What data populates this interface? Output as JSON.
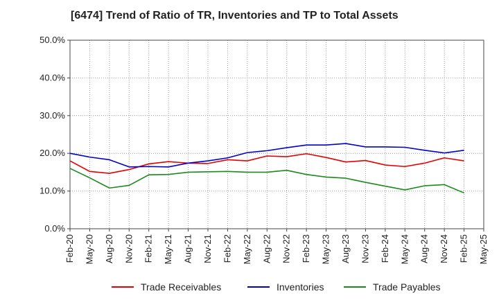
{
  "chart_data": {
    "type": "line",
    "title": "[6474]  Trend of Ratio of TR, Inventories and TP to Total Assets",
    "x": [
      "Feb-20",
      "May-20",
      "Aug-20",
      "Nov-20",
      "Feb-21",
      "May-21",
      "Aug-21",
      "Nov-21",
      "Feb-22",
      "May-22",
      "Aug-22",
      "Nov-22",
      "Feb-23",
      "May-23",
      "Aug-23",
      "Nov-23",
      "Feb-24",
      "May-24",
      "Aug-24",
      "Nov-24",
      "Feb-25"
    ],
    "x_ticks": [
      "Feb-20",
      "May-20",
      "Aug-20",
      "Nov-20",
      "Feb-21",
      "May-21",
      "Aug-21",
      "Nov-21",
      "Feb-22",
      "May-22",
      "Aug-22",
      "Nov-22",
      "Feb-23",
      "May-23",
      "Aug-23",
      "Nov-23",
      "Feb-24",
      "May-24",
      "Aug-24",
      "Nov-24",
      "Feb-25",
      "May-25"
    ],
    "y_ticks": [
      0,
      10,
      20,
      30,
      40,
      50
    ],
    "y_tick_labels": [
      "0.0%",
      "10.0%",
      "20.0%",
      "30.0%",
      "40.0%",
      "50.0%"
    ],
    "ylim": [
      0,
      50
    ],
    "grid": true,
    "legend_position": "bottom",
    "series": [
      {
        "name": "Trade Receivables",
        "color": "#e60000",
        "values": [
          18.0,
          15.2,
          14.7,
          15.7,
          17.2,
          17.8,
          17.4,
          17.3,
          18.3,
          18.0,
          19.3,
          19.1,
          19.9,
          18.9,
          17.7,
          18.1,
          16.9,
          16.5,
          17.4,
          18.8,
          18.0
        ]
      },
      {
        "name": "Inventories",
        "color": "#0000cc",
        "values": [
          20.0,
          19.0,
          18.3,
          16.4,
          16.5,
          16.4,
          17.4,
          18.0,
          18.8,
          20.2,
          20.7,
          21.5,
          22.2,
          22.2,
          22.6,
          21.7,
          21.7,
          21.6,
          20.8,
          20.1,
          20.8
        ]
      },
      {
        "name": "Trade Payables",
        "color": "#1a8a1a",
        "values": [
          16.0,
          13.5,
          10.8,
          11.5,
          14.3,
          14.4,
          15.0,
          15.1,
          15.2,
          15.0,
          15.0,
          15.5,
          14.4,
          13.7,
          13.4,
          12.3,
          11.3,
          10.3,
          11.4,
          11.7,
          9.5
        ]
      }
    ]
  }
}
